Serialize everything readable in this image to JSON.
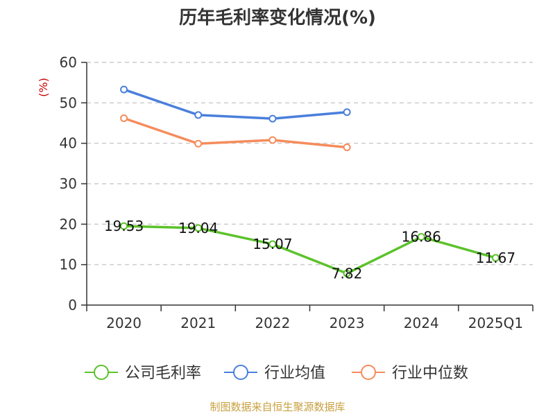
{
  "chart_data": {
    "type": "line",
    "title": "历年毛利率变化情况(%)",
    "ylabel": "(%)",
    "categories": [
      "2020",
      "2021",
      "2022",
      "2023",
      "2024",
      "2025Q1"
    ],
    "ylim": [
      0,
      60
    ],
    "yticks": [
      "0",
      "10",
      "20",
      "30",
      "40",
      "50",
      "60"
    ],
    "grid": true,
    "legend_position": "bottom",
    "series": [
      {
        "name": "公司毛利率",
        "color": "#5cc22b",
        "values": [
          19.53,
          19.04,
          15.07,
          7.82,
          16.86,
          11.67
        ],
        "labels": [
          "19.53",
          "19.04",
          "15.07",
          "7.82",
          "16.86",
          "11.67"
        ]
      },
      {
        "name": "行业均值",
        "color": "#4a7fdc",
        "values": [
          53.3,
          47.0,
          46.1,
          47.7,
          null,
          null
        ]
      },
      {
        "name": "行业中位数",
        "color": "#f58c5c",
        "values": [
          46.2,
          39.9,
          40.8,
          39.0,
          null,
          null
        ]
      }
    ]
  },
  "source": "制图数据来自恒生聚源数据库"
}
